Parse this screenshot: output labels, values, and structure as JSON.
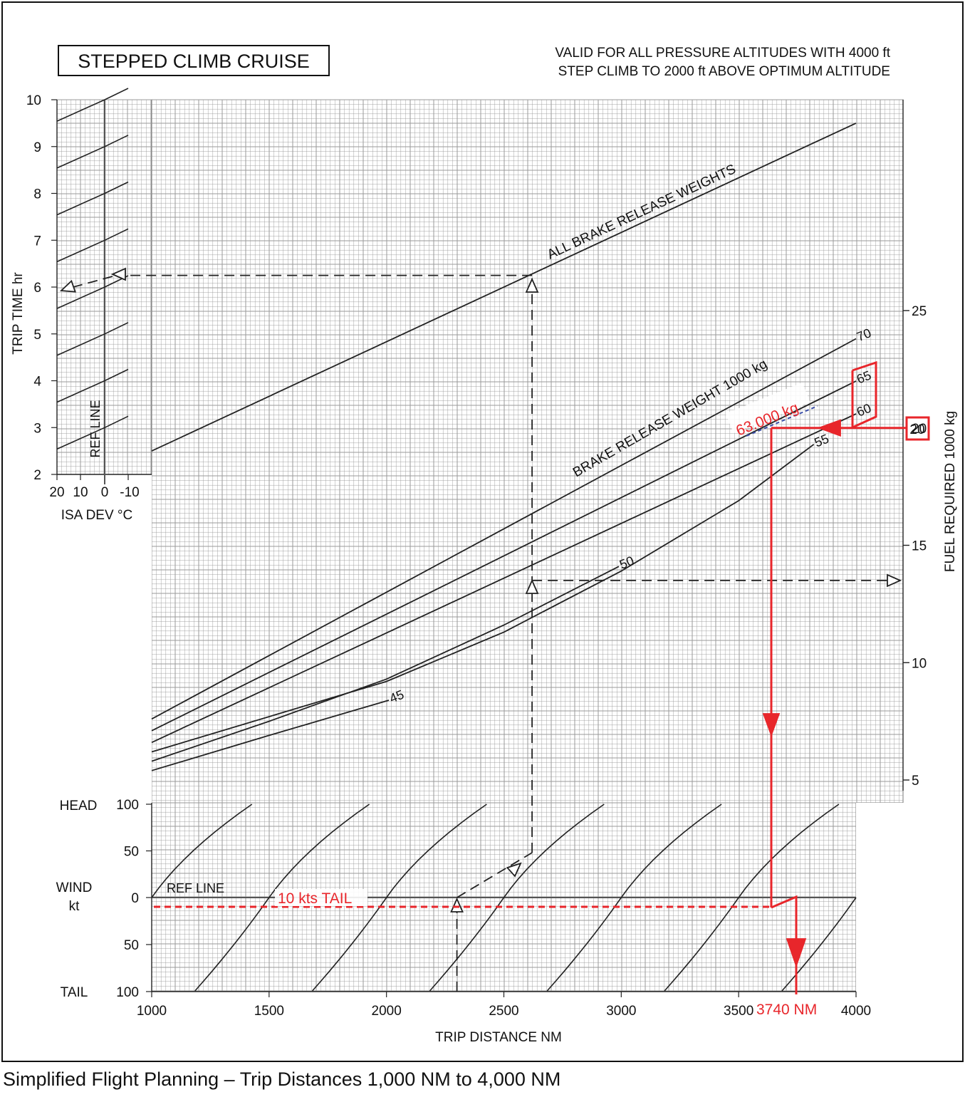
{
  "header": {
    "title": "STEPPED CLIMB CRUISE",
    "note_line1": "VALID FOR ALL PRESSURE ALTITUDES WITH 4000 ft",
    "note_line2": "STEP CLIMB TO 2000 ft ABOVE OPTIMUM ALTITUDE"
  },
  "caption": "Simplified Flight Planning – Trip Distances 1,000 NM to 4,000 NM",
  "colors": {
    "ink": "#222222",
    "grid": "#9a9a9a",
    "example": "#e8262b",
    "annotation_dash": "#3b4fa8"
  },
  "chart_data": {
    "type": "line",
    "title": "STEPPED CLIMB CRUISE",
    "x_axis": {
      "label": "TRIP DISTANCE  NM",
      "range": [
        1000,
        4000
      ],
      "ticks": [
        "1000",
        "1500",
        "2000",
        "2500",
        "3000",
        "3500",
        "4000"
      ]
    },
    "trip_time": {
      "axis_label": "TRIP TIME  hr",
      "range": [
        2,
        10
      ],
      "ticks": [
        "2",
        "3",
        "4",
        "5",
        "6",
        "7",
        "8",
        "9",
        "10"
      ],
      "curve_label": "ALL BRAKE RELEASE WEIGHTS",
      "line": [
        [
          1000,
          2.5
        ],
        [
          4000,
          9.5
        ]
      ],
      "isa_dev": {
        "axis_label": "ISA DEV °C",
        "ticks": [
          "20",
          "10",
          "0",
          "-10"
        ],
        "ref_label": "REF LINE",
        "guide_lines_at_ref": [
          3,
          4,
          5,
          6,
          7,
          8,
          9,
          10
        ]
      }
    },
    "fuel_required": {
      "axis_label": "FUEL REQUIRED  1000 kg",
      "ticks": [
        "5",
        "10",
        "15",
        "20",
        "25"
      ],
      "weight_label": "BRAKE RELEASE WEIGHT  1000 kg",
      "series": [
        {
          "name": "70",
          "x": [
            1000,
            4000
          ],
          "y": [
            7.6,
            23.8
          ]
        },
        {
          "name": "65",
          "x": [
            1000,
            4000
          ],
          "y": [
            7.1,
            22.0
          ]
        },
        {
          "name": "60",
          "x": [
            1000,
            4000
          ],
          "y": [
            6.6,
            20.6
          ]
        },
        {
          "name": "55",
          "x": [
            1000,
            2000,
            2500,
            3000,
            3500,
            3820
          ],
          "y": [
            6.2,
            9.2,
            11.3,
            13.9,
            16.9,
            19.3
          ]
        },
        {
          "name": "50",
          "x": [
            1000,
            1500,
            2000,
            2500,
            2990
          ],
          "y": [
            5.8,
            7.5,
            9.3,
            11.6,
            14.1
          ]
        },
        {
          "name": "45",
          "x": [
            1000,
            1500,
            2010
          ],
          "y": [
            5.4,
            6.9,
            8.4
          ]
        }
      ]
    },
    "wind": {
      "axis_label_head": "HEAD",
      "axis_label_wind": "WIND",
      "axis_unit": "kt",
      "axis_label_tail": "TAIL",
      "ticks": [
        "100",
        "50",
        "0",
        "50",
        "100"
      ],
      "ref_label": "REF LINE",
      "guide_lines_at_ref": [
        1000,
        1500,
        2000,
        2500,
        3000,
        3500,
        4000
      ]
    },
    "worked_example_dashed": {
      "distance_nm": 2300,
      "air_distance_nm": 2620,
      "trip_time_hr": 6.25,
      "fuel_1000kg": 13.5
    },
    "worked_example_red": {
      "fuel_1000kg": 20,
      "weight_label": "63.000 kg",
      "wind_label": "10 kts TAIL",
      "result_label": "3740 NM"
    }
  }
}
